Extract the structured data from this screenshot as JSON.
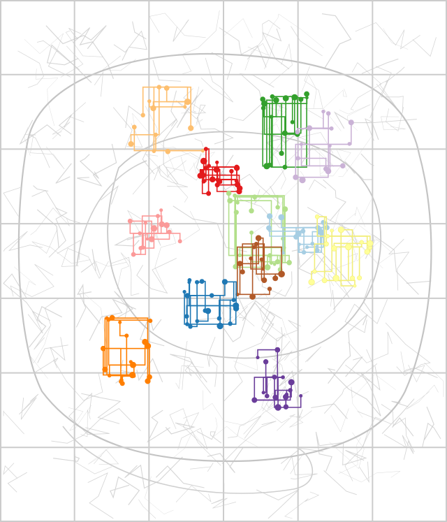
{
  "map": {
    "grid": {
      "cols": 6,
      "rows": 7,
      "color": "#cccccc"
    },
    "background_roads_color": "#c8c8c8",
    "clusters": [
      {
        "name": "orange-light",
        "color": "#fdbf6f",
        "center": [
          0.375,
          0.23
        ],
        "spread": [
          0.085,
          0.065
        ],
        "nodes": 14
      },
      {
        "name": "red",
        "color": "#e31a1c",
        "center": [
          0.495,
          0.33
        ],
        "spread": [
          0.05,
          0.045
        ],
        "nodes": 22
      },
      {
        "name": "green",
        "color": "#33a02c",
        "center": [
          0.64,
          0.26
        ],
        "spread": [
          0.06,
          0.08
        ],
        "nodes": 18
      },
      {
        "name": "lilac",
        "color": "#cab2d6",
        "center": [
          0.73,
          0.28
        ],
        "spread": [
          0.07,
          0.07
        ],
        "nodes": 15
      },
      {
        "name": "pink",
        "color": "#fb9a99",
        "center": [
          0.35,
          0.44
        ],
        "spread": [
          0.06,
          0.05
        ],
        "nodes": 16
      },
      {
        "name": "light-green",
        "color": "#b2df8a",
        "center": [
          0.58,
          0.44
        ],
        "spread": [
          0.07,
          0.08
        ],
        "nodes": 22
      },
      {
        "name": "light-blue",
        "color": "#a6cee3",
        "center": [
          0.67,
          0.45
        ],
        "spread": [
          0.07,
          0.04
        ],
        "nodes": 18
      },
      {
        "name": "yellow",
        "color": "#ffff99",
        "stroke": "#f2ee7a",
        "center": [
          0.76,
          0.48
        ],
        "spread": [
          0.07,
          0.07
        ],
        "nodes": 18
      },
      {
        "name": "brown",
        "color": "#b15928",
        "center": [
          0.58,
          0.51
        ],
        "spread": [
          0.05,
          0.06
        ],
        "nodes": 14
      },
      {
        "name": "blue",
        "color": "#1f78b4",
        "center": [
          0.47,
          0.58
        ],
        "spread": [
          0.06,
          0.05
        ],
        "nodes": 20
      },
      {
        "name": "orange",
        "color": "#ff7f00",
        "center": [
          0.29,
          0.66
        ],
        "spread": [
          0.07,
          0.08
        ],
        "nodes": 20
      },
      {
        "name": "purple",
        "color": "#6a3d9a",
        "center": [
          0.62,
          0.74
        ],
        "spread": [
          0.06,
          0.07
        ],
        "nodes": 16
      }
    ]
  }
}
